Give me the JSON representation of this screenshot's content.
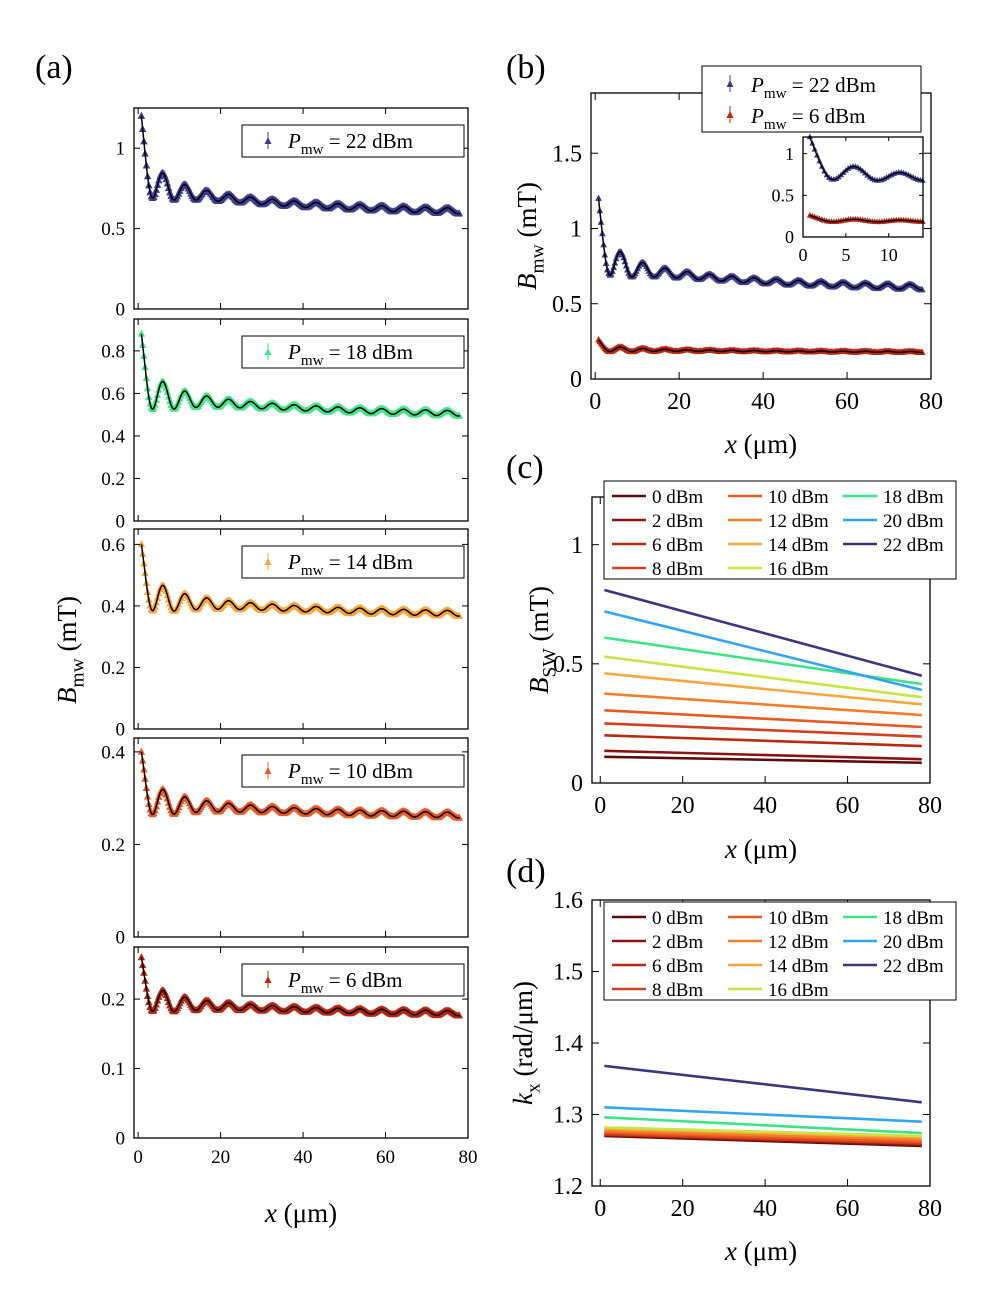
{
  "panel_labels": {
    "a": "(a)",
    "b": "(b)",
    "c": "(c)",
    "d": "(d)"
  },
  "chart_data": [
    {
      "id": "a1",
      "type": "scatter",
      "ylim": [
        0,
        1.25
      ],
      "yticks": [
        "0",
        "0.5",
        "1"
      ],
      "legend": {
        "prefix": "P",
        "sub": "mw",
        "suffix": " = 22 dBm",
        "position": "top-right"
      },
      "series": [
        {
          "name": "22 dBm",
          "color": "#3d3c8e",
          "start": 1.2,
          "end": 0.455,
          "amp": 0.33,
          "decay": 0.15,
          "ampTail": 0.035,
          "period": 5.3
        }
      ]
    },
    {
      "id": "a2",
      "type": "scatter",
      "ylim": [
        0,
        0.95
      ],
      "yticks": [
        "0",
        "0.2",
        "0.4",
        "0.6",
        "0.8"
      ],
      "legend": {
        "prefix": "P",
        "sub": "mw",
        "suffix": " = 18 dBm",
        "position": "top-right"
      },
      "series": [
        {
          "name": "18 dBm",
          "color": "#46e38c",
          "start": 0.88,
          "end": 0.41,
          "amp": 0.24,
          "decay": 0.13,
          "ampTail": 0.025,
          "period": 5.3
        }
      ]
    },
    {
      "id": "a3",
      "type": "scatter",
      "ylim": [
        0,
        0.65
      ],
      "yticks": [
        "0",
        "0.2",
        "0.4",
        "0.6"
      ],
      "legend": {
        "prefix": "P",
        "sub": "mw",
        "suffix": " = 14 dBm",
        "position": "top-right"
      },
      "series": [
        {
          "name": "14 dBm",
          "color": "#f9a63a",
          "start": 0.6,
          "end": 0.32,
          "amp": 0.14,
          "decay": 0.12,
          "ampTail": 0.018,
          "period": 5.3
        }
      ]
    },
    {
      "id": "a4",
      "type": "scatter",
      "ylim": [
        0,
        0.43
      ],
      "yticks": [
        "0",
        "0.2",
        "0.4"
      ],
      "legend": {
        "prefix": "P",
        "sub": "mw",
        "suffix": " = 10 dBm",
        "position": "top-right"
      },
      "series": [
        {
          "name": "10 dBm",
          "color": "#e85a26",
          "start": 0.4,
          "end": 0.23,
          "amp": 0.09,
          "decay": 0.12,
          "ampTail": 0.012,
          "period": 5.3
        }
      ]
    },
    {
      "id": "a5",
      "type": "scatter",
      "ylim": [
        0,
        0.275
      ],
      "yticks": [
        "0",
        "0.1",
        "0.2"
      ],
      "xlim": [
        -1,
        80
      ],
      "xticks": [
        "0",
        "20",
        "40",
        "60",
        "80"
      ],
      "xlabel": "x (μm)",
      "legend": {
        "prefix": "P",
        "sub": "mw",
        "suffix": " = 6 dBm",
        "position": "top-right"
      },
      "series": [
        {
          "name": "6 dBm",
          "color": "#b8260e",
          "start": 0.26,
          "end": 0.16,
          "amp": 0.05,
          "decay": 0.12,
          "ampTail": 0.007,
          "period": 5.3
        }
      ]
    },
    {
      "id": "b",
      "type": "scatter",
      "xlim": [
        -1,
        80
      ],
      "ylim": [
        0,
        1.9
      ],
      "xticks": [
        "0",
        "20",
        "40",
        "60",
        "80"
      ],
      "yticks": [
        "0",
        "0.5",
        "1",
        "1.5"
      ],
      "xlabel": "x (μm)",
      "ylabel": {
        "main": "B",
        "sub": "mw",
        "unit": " (mT)"
      },
      "legend": {
        "position": "top-right",
        "entries": [
          {
            "prefix": "P",
            "sub": "mw",
            "suffix": " = 22 dBm"
          },
          {
            "prefix": "P",
            "sub": "mw",
            "suffix": " = 6 dBm"
          }
        ]
      },
      "series": [
        {
          "name": "22 dBm",
          "color": "#3d3c8e",
          "start": 1.2,
          "end": 0.455,
          "amp": 0.33,
          "decay": 0.15,
          "ampTail": 0.035,
          "period": 5.3
        },
        {
          "name": "6 dBm",
          "color": "#b8260e",
          "start": 0.26,
          "end": 0.16,
          "amp": 0.05,
          "decay": 0.12,
          "ampTail": 0.007,
          "period": 5.3
        }
      ],
      "inset": {
        "xlim": [
          0,
          14
        ],
        "ylim": [
          0,
          1.2
        ],
        "xticks": [
          "0",
          "5",
          "10"
        ],
        "yticks": [
          "0",
          "0.5",
          "1"
        ]
      }
    },
    {
      "id": "c",
      "type": "line",
      "xlim": [
        -2,
        80
      ],
      "ylim": [
        0,
        1.2
      ],
      "xticks": [
        "0",
        "20",
        "40",
        "60",
        "80"
      ],
      "yticks": [
        "0",
        "0.5",
        "1"
      ],
      "xlabel": "x (μm)",
      "ylabel": {
        "main": "B",
        "sub": "SW",
        "unit": " (mT)"
      },
      "x": [
        1,
        78
      ],
      "series": [
        {
          "name": "0 dBm",
          "color": "#5c0a0a",
          "values": [
            0.11,
            0.085
          ]
        },
        {
          "name": "2 dBm",
          "color": "#8c1212",
          "values": [
            0.135,
            0.1
          ]
        },
        {
          "name": "6 dBm",
          "color": "#b82a10",
          "values": [
            0.2,
            0.155
          ]
        },
        {
          "name": "8 dBm",
          "color": "#d24020",
          "values": [
            0.25,
            0.195
          ]
        },
        {
          "name": "10 dBm",
          "color": "#e85a1e",
          "values": [
            0.305,
            0.235
          ]
        },
        {
          "name": "12 dBm",
          "color": "#f57c28",
          "values": [
            0.375,
            0.285
          ]
        },
        {
          "name": "14 dBm",
          "color": "#fba63c",
          "values": [
            0.46,
            0.33
          ]
        },
        {
          "name": "16 dBm",
          "color": "#c5e645",
          "values": [
            0.53,
            0.36
          ]
        },
        {
          "name": "18 dBm",
          "color": "#3ee388",
          "values": [
            0.61,
            0.415
          ]
        },
        {
          "name": "20 dBm",
          "color": "#31a6ee",
          "values": [
            0.72,
            0.39
          ]
        },
        {
          "name": "22 dBm",
          "color": "#3a3680",
          "values": [
            0.81,
            0.45
          ]
        }
      ],
      "legend_columns": 3
    },
    {
      "id": "d",
      "type": "line",
      "xlim": [
        -2,
        80
      ],
      "ylim": [
        1.2,
        1.6
      ],
      "xticks": [
        "0",
        "20",
        "40",
        "60",
        "80"
      ],
      "yticks": [
        "1.2",
        "1.3",
        "1.4",
        "1.5",
        "1.6"
      ],
      "xlabel": "x (μm)",
      "ylabel": {
        "main": "k",
        "sub": "x",
        "unit": " (rad/μm)"
      },
      "x": [
        1,
        78
      ],
      "series": [
        {
          "name": "0 dBm",
          "color": "#5c0a0a",
          "values": [
            1.27,
            1.256
          ]
        },
        {
          "name": "2 dBm",
          "color": "#8c1212",
          "values": [
            1.271,
            1.257
          ]
        },
        {
          "name": "6 dBm",
          "color": "#b82a10",
          "values": [
            1.272,
            1.259
          ]
        },
        {
          "name": "8 dBm",
          "color": "#d24020",
          "values": [
            1.273,
            1.26
          ]
        },
        {
          "name": "10 dBm",
          "color": "#e85a1e",
          "values": [
            1.275,
            1.262
          ]
        },
        {
          "name": "12 dBm",
          "color": "#f57c28",
          "values": [
            1.277,
            1.265
          ]
        },
        {
          "name": "14 dBm",
          "color": "#fba63c",
          "values": [
            1.28,
            1.268
          ]
        },
        {
          "name": "16 dBm",
          "color": "#c5e645",
          "values": [
            1.282,
            1.27
          ]
        },
        {
          "name": "18 dBm",
          "color": "#3ee388",
          "values": [
            1.296,
            1.274
          ]
        },
        {
          "name": "20 dBm",
          "color": "#31a6ee",
          "values": [
            1.31,
            1.29
          ]
        },
        {
          "name": "22 dBm",
          "color": "#3a3680",
          "values": [
            1.368,
            1.317
          ]
        }
      ],
      "legend_columns": 3
    }
  ],
  "shared_a": {
    "ylabel": {
      "main": "B",
      "sub": "mw",
      "unit": " (mT)"
    }
  }
}
